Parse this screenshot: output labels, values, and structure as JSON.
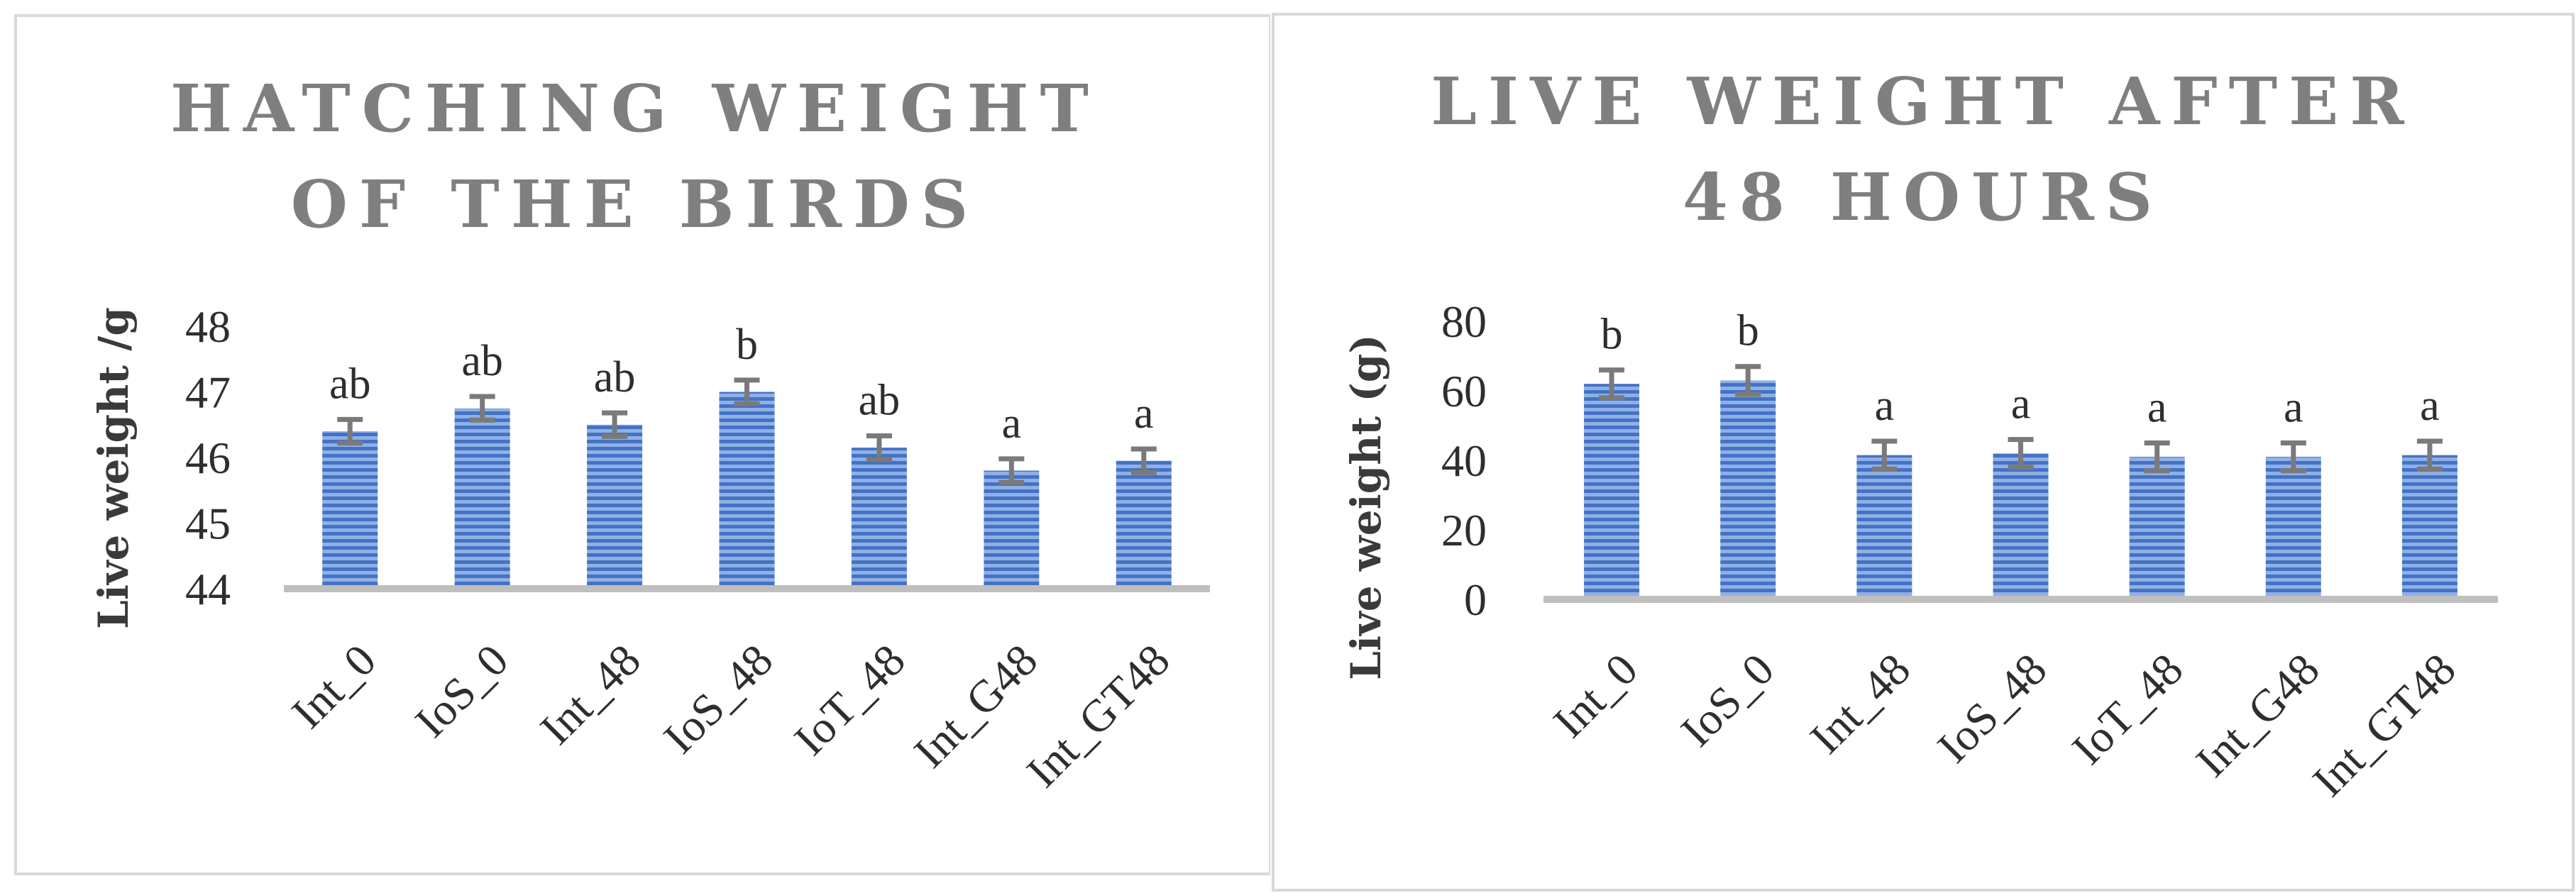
{
  "chart_data": [
    {
      "type": "bar",
      "title_lines": [
        "HATCHING WEIGHT",
        "OF THE BIRDS"
      ],
      "ylabel": "Live weight /g",
      "xlabel": "",
      "categories": [
        "Int_0",
        "IoS_0",
        "Int_48",
        "IoS_48",
        "IoT_48",
        "Int_G48",
        "Int_GT48"
      ],
      "values": [
        46.4,
        46.75,
        46.5,
        47.0,
        46.15,
        45.8,
        45.95
      ],
      "errors": [
        0.18,
        0.18,
        0.18,
        0.18,
        0.18,
        0.18,
        0.18
      ],
      "labels": [
        "ab",
        "ab",
        "ab",
        "b",
        "ab",
        "a",
        "a"
      ],
      "ylim": [
        44,
        48
      ],
      "yticks": [
        "44",
        "45",
        "46",
        "47",
        "48"
      ],
      "grid": false,
      "bar_color": "#4472c4"
    },
    {
      "type": "bar",
      "title_lines": [
        "LIVE WEIGHT AFTER",
        "48 HOURS"
      ],
      "ylabel": "Live weight (g)",
      "xlabel": "",
      "categories": [
        "Int_0",
        "IoS_0",
        "Int_48",
        "IoS_48",
        "IoT_48",
        "Int_G48",
        "Int_GT48"
      ],
      "values": [
        62,
        63,
        41.5,
        42,
        41,
        41,
        41.5
      ],
      "errors": [
        4,
        4,
        4,
        4,
        4,
        4,
        4
      ],
      "labels": [
        "b",
        "b",
        "a",
        "a",
        "a",
        "a",
        "a"
      ],
      "ylim": [
        0,
        80
      ],
      "yticks": [
        "0",
        "20",
        "40",
        "60",
        "80"
      ],
      "grid": false,
      "bar_color": "#4472c4"
    }
  ]
}
